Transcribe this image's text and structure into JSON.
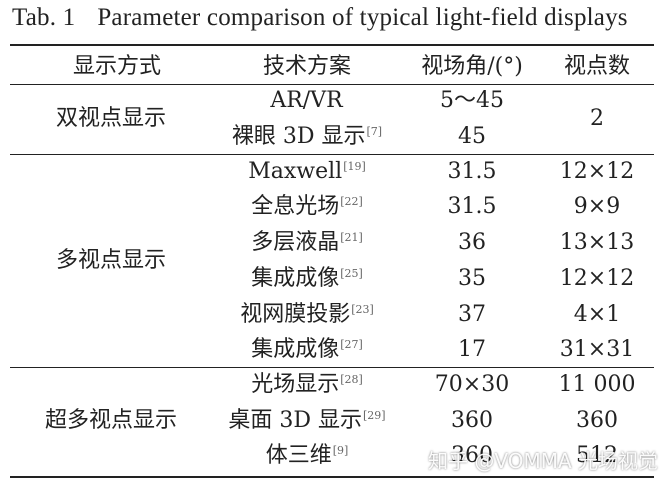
{
  "table": {
    "caption_number": "Tab. 1",
    "caption_title": "Parameter comparison of typical light-field displays",
    "headers": [
      "显示方式",
      "技术方案",
      "视场角/(°)",
      "视点数"
    ],
    "groups": [
      {
        "name": "双视点显示",
        "viewpoints_merged": "2",
        "rows": [
          {
            "scheme": "AR/VR",
            "ref": "",
            "fov": "5～45"
          },
          {
            "scheme": "裸眼 3D 显示",
            "ref": "[7]",
            "fov": "45"
          }
        ]
      },
      {
        "name": "多视点显示",
        "rows": [
          {
            "scheme": "Maxwell",
            "ref": "[19]",
            "fov": "31.5",
            "views": "12×12"
          },
          {
            "scheme": "全息光场",
            "ref": "[22]",
            "fov": "31.5",
            "views": "9×9"
          },
          {
            "scheme": "多层液晶",
            "ref": "[21]",
            "fov": "36",
            "views": "13×13"
          },
          {
            "scheme": "集成成像",
            "ref": "[25]",
            "fov": "35",
            "views": "12×12"
          },
          {
            "scheme": "视网膜投影",
            "ref": "[23]",
            "fov": "37",
            "views": "4×1"
          },
          {
            "scheme": "集成成像",
            "ref": "[27]",
            "fov": "17",
            "views": "31×31"
          }
        ]
      },
      {
        "name": "超多视点显示",
        "rows": [
          {
            "scheme": "光场显示",
            "ref": "[28]",
            "fov": "70×30",
            "views": "11 000"
          },
          {
            "scheme": "桌面 3D 显示",
            "ref": "[29]",
            "fov": "360",
            "views": "360"
          },
          {
            "scheme": "体三维",
            "ref": "[9]",
            "fov": "360",
            "views": "512"
          }
        ]
      }
    ]
  },
  "watermark": "知乎 @VOMMA 光场视觉"
}
